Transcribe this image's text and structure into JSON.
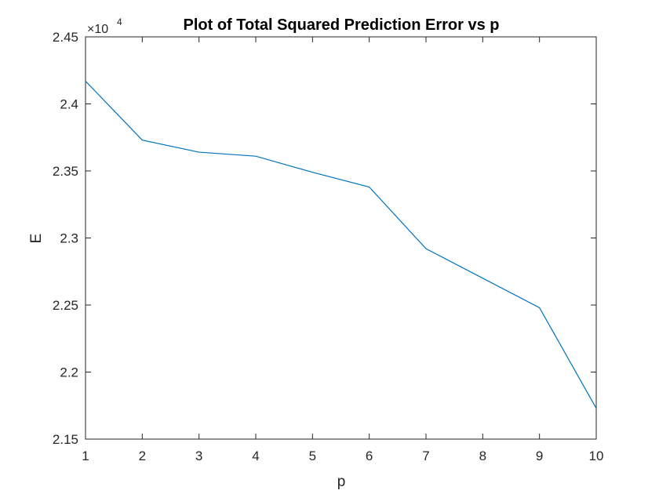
{
  "chart_data": {
    "type": "line",
    "title": "Plot of Total Squared Prediction Error vs p",
    "xlabel": "p",
    "ylabel": "E",
    "xlim": [
      1,
      10
    ],
    "ylim": [
      2.15,
      2.45
    ],
    "y_exponent": {
      "base": "×10",
      "power": "4"
    },
    "xticks": [
      {
        "value": 1,
        "label": "1"
      },
      {
        "value": 2,
        "label": "2"
      },
      {
        "value": 3,
        "label": "3"
      },
      {
        "value": 4,
        "label": "4"
      },
      {
        "value": 5,
        "label": "5"
      },
      {
        "value": 6,
        "label": "6"
      },
      {
        "value": 7,
        "label": "7"
      },
      {
        "value": 8,
        "label": "8"
      },
      {
        "value": 9,
        "label": "9"
      },
      {
        "value": 10,
        "label": "10"
      }
    ],
    "yticks": [
      {
        "value": 2.15,
        "label": "2.15"
      },
      {
        "value": 2.2,
        "label": "2.2"
      },
      {
        "value": 2.25,
        "label": "2.25"
      },
      {
        "value": 2.3,
        "label": "2.3"
      },
      {
        "value": 2.35,
        "label": "2.35"
      },
      {
        "value": 2.4,
        "label": "2.4"
      },
      {
        "value": 2.45,
        "label": "2.45"
      }
    ],
    "grid": false,
    "series": [
      {
        "color": "#0072BD",
        "x": [
          1,
          2,
          3,
          4,
          5,
          6,
          7,
          8,
          9,
          10
        ],
        "y": [
          2.417,
          2.373,
          2.364,
          2.361,
          2.349,
          2.338,
          2.292,
          2.27,
          2.248,
          2.173
        ]
      }
    ]
  }
}
